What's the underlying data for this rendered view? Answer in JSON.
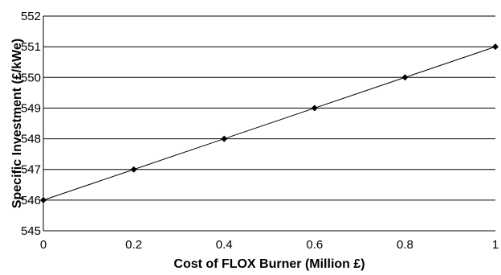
{
  "chart_data": {
    "type": "line",
    "title": "",
    "xlabel": "Cost of FLOX Burner (Million £)",
    "ylabel": "Specific Investment (£/kWe)",
    "xlim": [
      0,
      1
    ],
    "ylim": [
      545,
      552
    ],
    "x_ticks": [
      "0",
      "0.2",
      "0.4",
      "0.6",
      "0.8",
      "1"
    ],
    "y_ticks": [
      "545",
      "546",
      "547",
      "548",
      "549",
      "550",
      "551",
      "552"
    ],
    "grid": "horizontal",
    "legend": "none",
    "series": [
      {
        "x": [
          0,
          0.2,
          0.4,
          0.6,
          0.8,
          1
        ],
        "y": [
          546,
          547,
          548,
          549,
          550,
          551
        ],
        "color": "#000000",
        "marker": "diamond"
      }
    ]
  }
}
